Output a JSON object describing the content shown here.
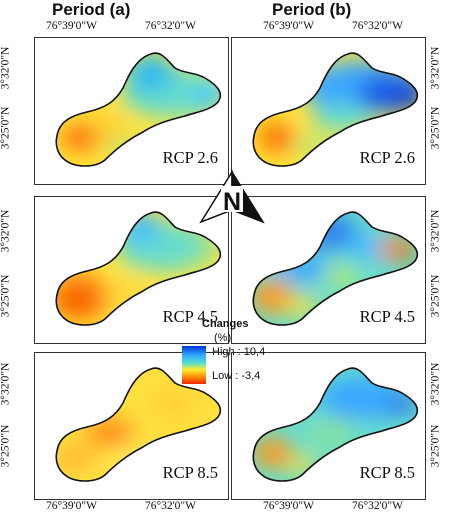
{
  "periods": [
    {
      "id": "a",
      "title": "Period (a)"
    },
    {
      "id": "b",
      "title": "Period (b)"
    }
  ],
  "axes": {
    "lon_left": "76°39'0\"W",
    "lon_right": "76°32'0\"W",
    "lat_top": "3°32'0\"N",
    "lat_bottom": "3°25'0\"N"
  },
  "panels": [
    {
      "period": "a",
      "scenario": "RCP 2.6"
    },
    {
      "period": "b",
      "scenario": "RCP 2.6"
    },
    {
      "period": "a",
      "scenario": "RCP 4.5"
    },
    {
      "period": "b",
      "scenario": "RCP 4.5"
    },
    {
      "period": "a",
      "scenario": "RCP 8.5"
    },
    {
      "period": "b",
      "scenario": "RCP 8.5"
    }
  ],
  "north_arrow": {
    "letter": "N",
    "icon": "north-arrow-icon"
  },
  "legend": {
    "title_line1": "Changes",
    "title_line2": "(%)",
    "high_label": "High : 10,4",
    "low_label": "Low : -3,4",
    "high_value": 10.4,
    "low_value": -3.4,
    "ramp_colors": [
      "#0033dd",
      "#33aaff",
      "#55ddcc",
      "#ffee33",
      "#ff8800",
      "#ee2200"
    ]
  }
}
